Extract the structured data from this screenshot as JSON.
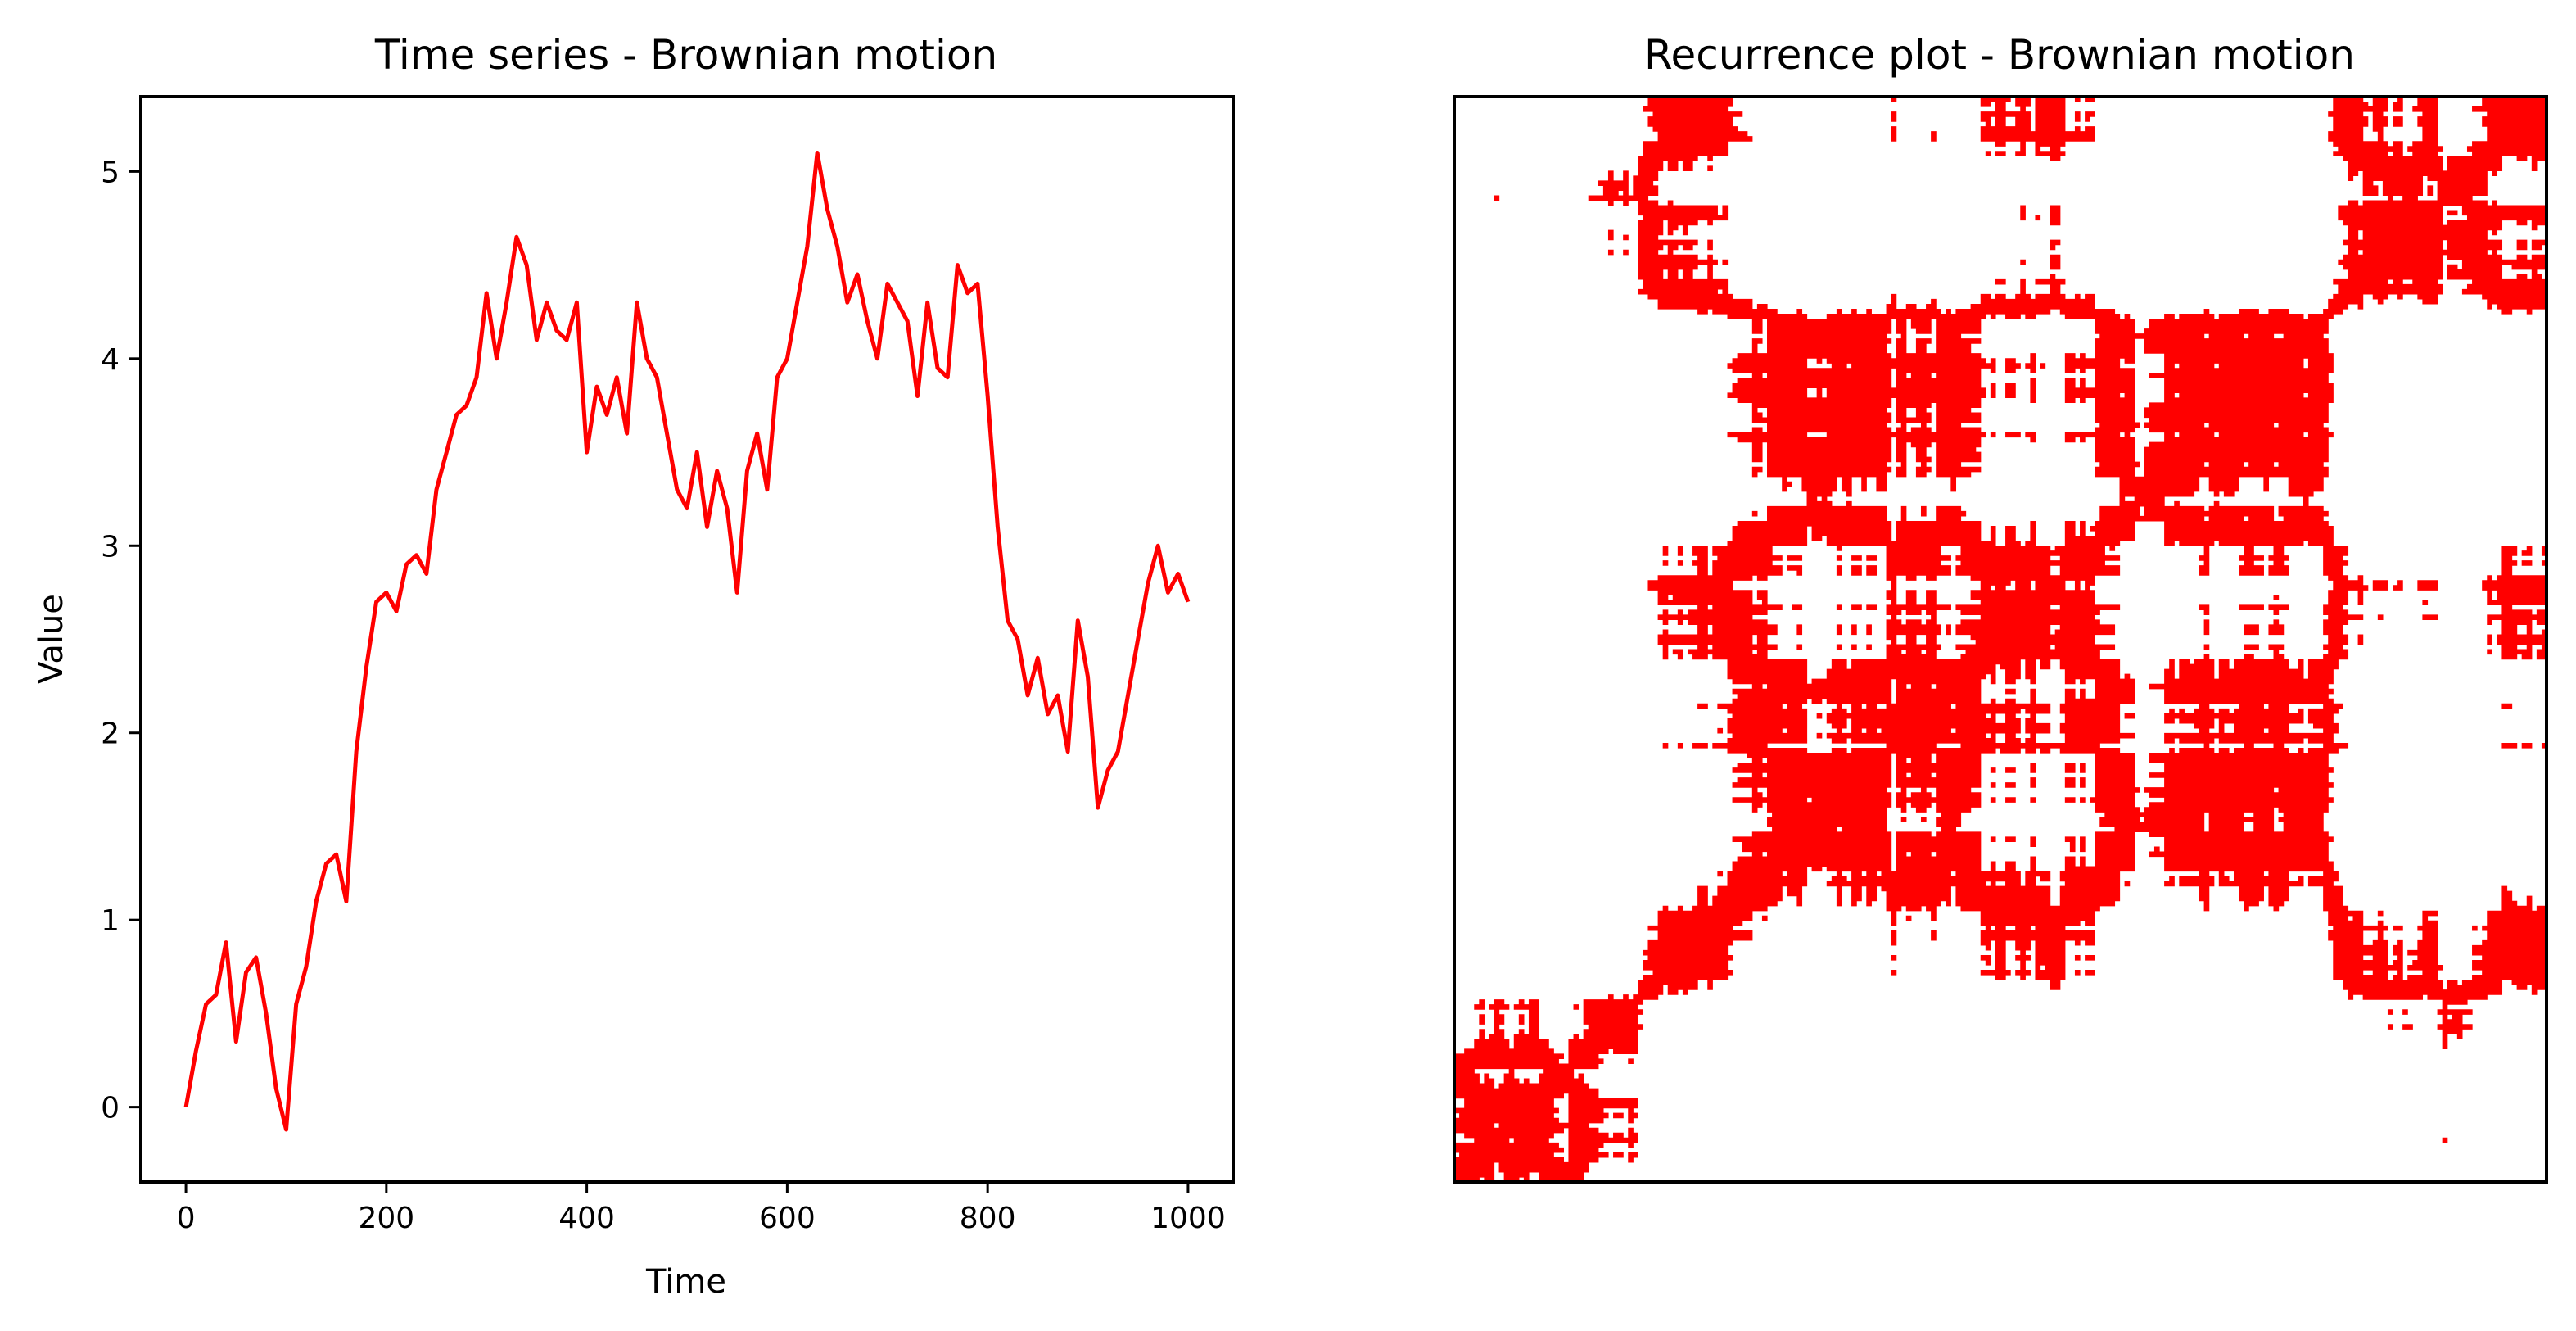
{
  "chart_data": [
    {
      "type": "line",
      "title": "Time series - Brownian motion",
      "xlabel": "Time",
      "ylabel": "Value",
      "xlim": [
        -45,
        1045
      ],
      "ylim": [
        -0.4,
        5.4
      ],
      "xticks": [
        0,
        200,
        400,
        600,
        800,
        1000
      ],
      "yticks": [
        0,
        1,
        2,
        3,
        4,
        5
      ],
      "grid": false,
      "color": "#ff0000",
      "series": [
        {
          "x": [
            0,
            10,
            20,
            30,
            40,
            50,
            60,
            70,
            80,
            90,
            100,
            110,
            120,
            130,
            140,
            150,
            160,
            170,
            180,
            190,
            200,
            210,
            220,
            230,
            240,
            250,
            260,
            270,
            280,
            290,
            300,
            310,
            320,
            330,
            340,
            350,
            360,
            370,
            380,
            390,
            400,
            410,
            420,
            430,
            440,
            450,
            460,
            470,
            480,
            490,
            500,
            510,
            520,
            530,
            540,
            550,
            560,
            570,
            580,
            590,
            600,
            610,
            620,
            630,
            640,
            650,
            660,
            670,
            680,
            690,
            700,
            710,
            720,
            730,
            740,
            750,
            760,
            770,
            780,
            790,
            800,
            810,
            820,
            830,
            840,
            850,
            860,
            870,
            880,
            890,
            900,
            910,
            920,
            930,
            940,
            950,
            960,
            970,
            980,
            990,
            1000
          ],
          "values": [
            0.0,
            0.3,
            0.55,
            0.6,
            0.88,
            0.35,
            0.72,
            0.8,
            0.5,
            0.1,
            -0.12,
            0.55,
            0.75,
            1.1,
            1.3,
            1.35,
            1.1,
            1.9,
            2.35,
            2.7,
            2.75,
            2.65,
            2.9,
            2.95,
            2.85,
            3.3,
            3.5,
            3.7,
            3.75,
            3.9,
            4.35,
            4.0,
            4.3,
            4.65,
            4.5,
            4.1,
            4.3,
            4.15,
            4.1,
            4.3,
            3.5,
            3.85,
            3.7,
            3.9,
            3.6,
            4.3,
            4.0,
            3.9,
            3.6,
            3.3,
            3.2,
            3.5,
            3.1,
            3.4,
            3.2,
            2.75,
            3.4,
            3.6,
            3.3,
            3.9,
            4.0,
            4.3,
            4.6,
            5.1,
            4.8,
            4.6,
            4.3,
            4.45,
            4.2,
            4.0,
            4.4,
            4.3,
            4.2,
            3.8,
            4.3,
            3.95,
            3.9,
            4.5,
            4.35,
            4.4,
            3.8,
            3.1,
            2.6,
            2.5,
            2.2,
            2.4,
            2.1,
            2.2,
            1.9,
            2.6,
            2.3,
            1.6,
            1.8,
            1.9,
            2.2,
            2.5,
            2.8,
            3.0,
            2.75,
            2.85,
            2.7
          ]
        }
      ]
    },
    {
      "type": "heatmap",
      "title": "Recurrence plot - Brownian motion",
      "color": "#ff0000",
      "background": "#ffffff",
      "axes_visible": false,
      "threshold": 0.6
    }
  ]
}
